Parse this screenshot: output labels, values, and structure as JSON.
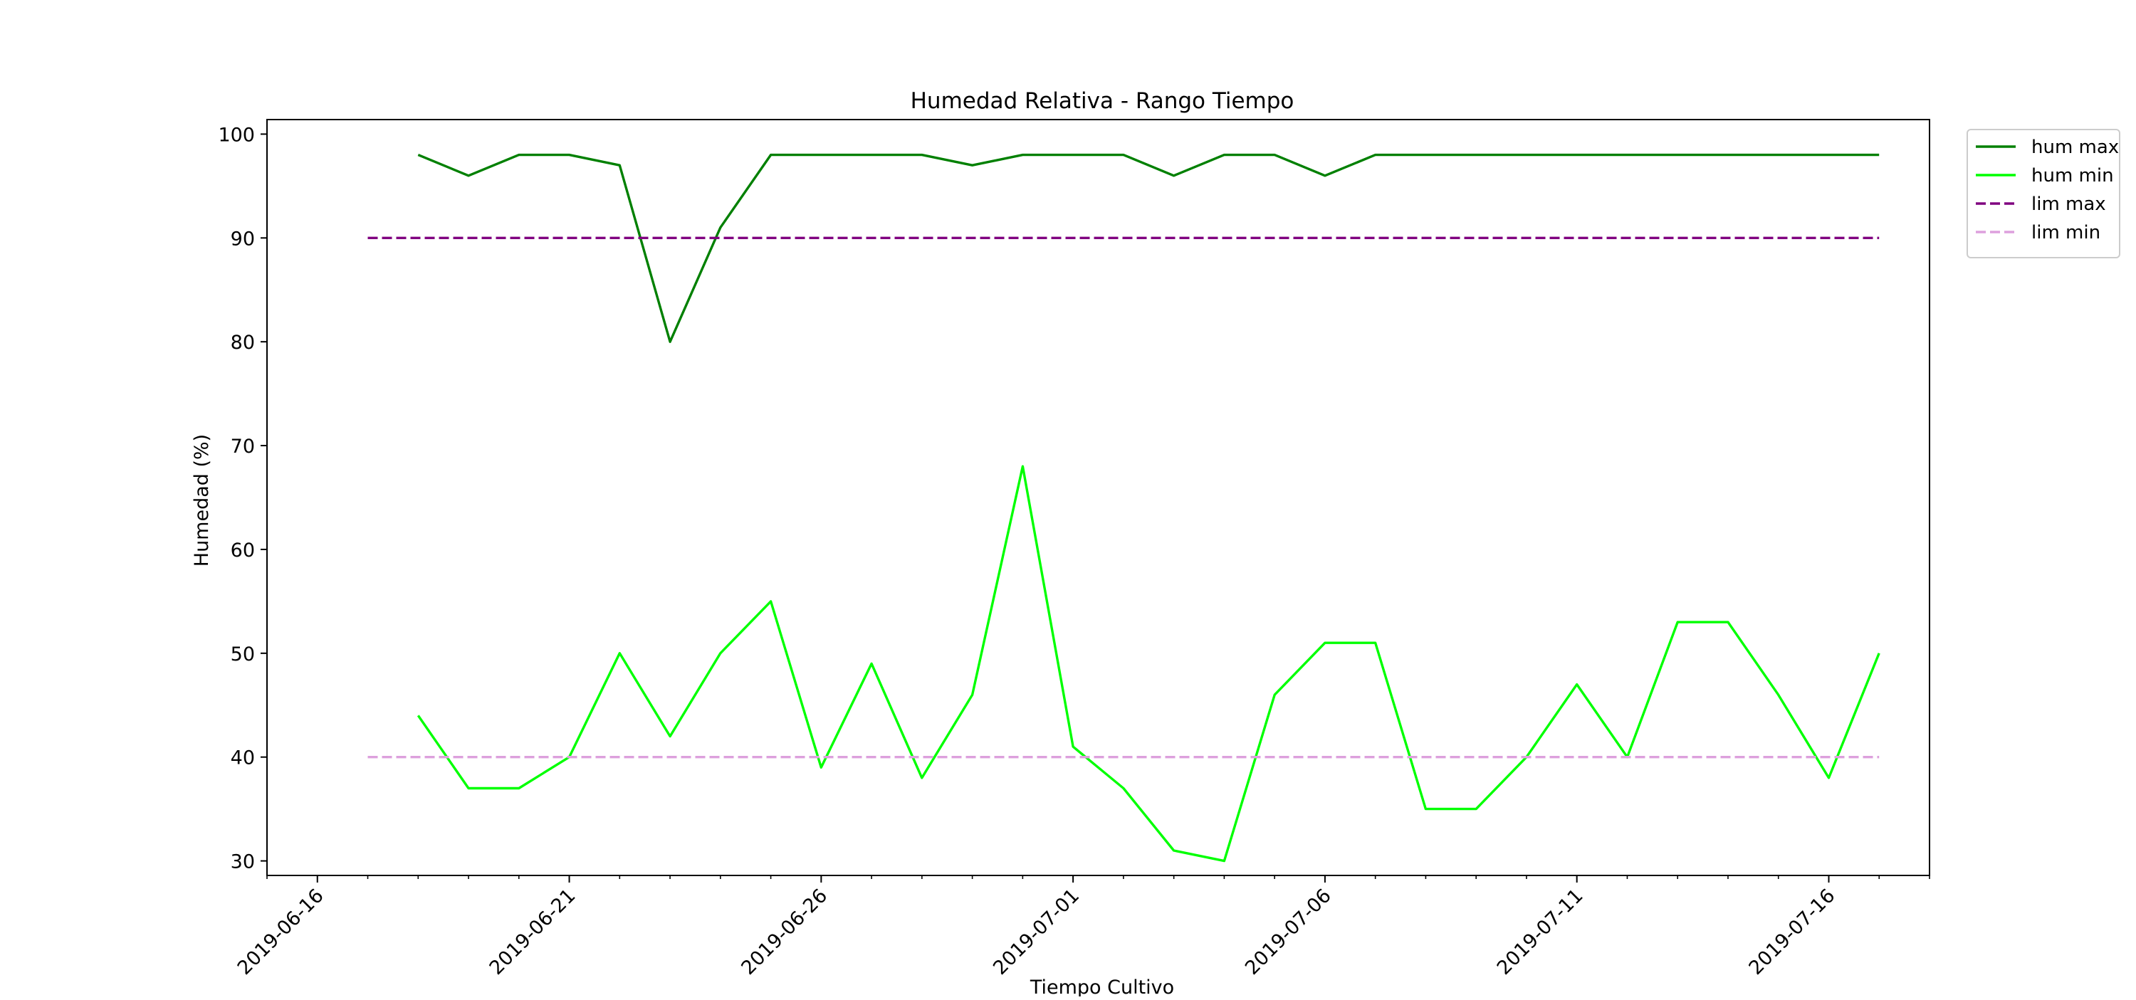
{
  "chart_data": {
    "type": "line",
    "title": "Humedad Relativa - Rango Tiempo",
    "xlabel": "Tiempo Cultivo",
    "ylabel": "Humedad (%)",
    "x_type": "date",
    "xlim": [
      "2019-06-15",
      "2019-07-18"
    ],
    "ylim": [
      28.6,
      101.4
    ],
    "yticks": [
      30,
      40,
      50,
      60,
      70,
      80,
      90,
      100
    ],
    "xticks": [
      "2019-06-16",
      "2019-06-21",
      "2019-06-26",
      "2019-07-01",
      "2019-07-06",
      "2019-07-11",
      "2019-07-16"
    ],
    "x_minor_tick_interval_days": 1,
    "grid": false,
    "legend_position": "outside-top-right",
    "x": [
      "2019-06-18",
      "2019-06-19",
      "2019-06-20",
      "2019-06-21",
      "2019-06-22",
      "2019-06-23",
      "2019-06-24",
      "2019-06-25",
      "2019-06-26",
      "2019-06-27",
      "2019-06-28",
      "2019-06-29",
      "2019-06-30",
      "2019-07-01",
      "2019-07-02",
      "2019-07-03",
      "2019-07-04",
      "2019-07-05",
      "2019-07-06",
      "2019-07-07",
      "2019-07-08",
      "2019-07-09",
      "2019-07-10",
      "2019-07-11",
      "2019-07-12",
      "2019-07-13",
      "2019-07-14",
      "2019-07-15",
      "2019-07-16",
      "2019-07-17"
    ],
    "series": [
      {
        "name": "hum max",
        "color": "#008000",
        "style": "solid",
        "values": [
          98,
          96,
          98,
          98,
          97,
          80,
          91,
          98,
          98,
          98,
          98,
          97,
          98,
          98,
          98,
          96,
          98,
          98,
          96,
          98,
          98,
          98,
          98,
          98,
          98,
          98,
          98,
          98,
          98,
          98
        ]
      },
      {
        "name": "hum min",
        "color": "#00ff00",
        "style": "solid",
        "values": [
          44,
          37,
          37,
          40,
          50,
          42,
          50,
          55,
          39,
          49,
          38,
          46,
          68,
          41,
          37,
          31,
          30,
          46,
          51,
          51,
          35,
          35,
          40,
          47,
          40,
          53,
          53,
          46,
          38,
          50
        ]
      },
      {
        "name": "lim max",
        "color": "#800080",
        "style": "dashed",
        "x_range": [
          "2019-06-17",
          "2019-07-17"
        ],
        "constant": 90
      },
      {
        "name": "lim min",
        "color": "#dda0dd",
        "style": "dashed",
        "x_range": [
          "2019-06-17",
          "2019-07-17"
        ],
        "constant": 40
      }
    ]
  }
}
